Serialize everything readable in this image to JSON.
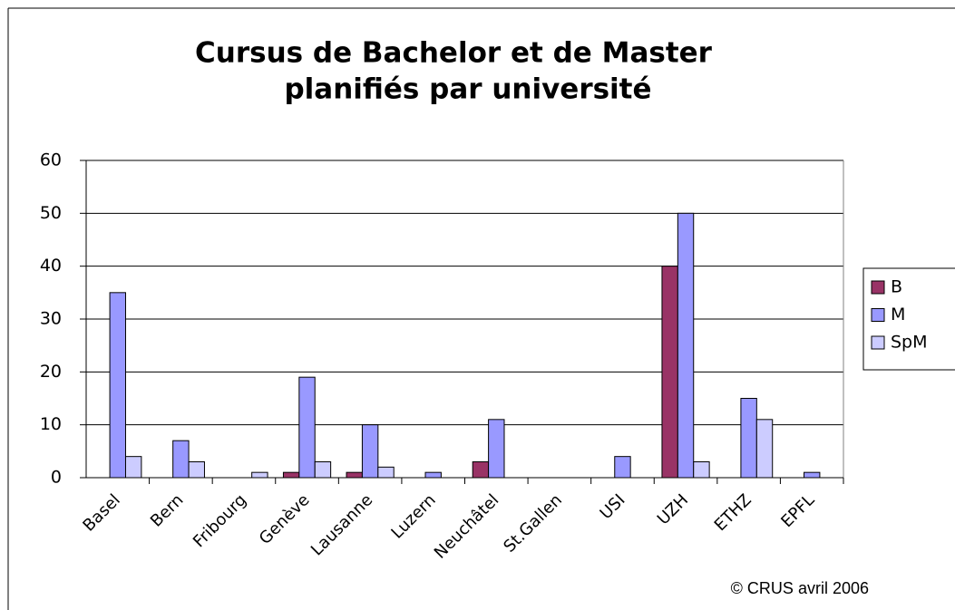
{
  "chart_data": {
    "type": "bar",
    "title": [
      "Cursus de Bachelor et de Master",
      "planifiés par université"
    ],
    "annotation": "© CRUS avril 2006",
    "categories": [
      "Basel",
      "Bern",
      "Fribourg",
      "Genève",
      "Lausanne",
      "Luzern",
      "Neuchâtel",
      "St.Gallen",
      "USI",
      "UZH",
      "ETHZ",
      "EPFL"
    ],
    "series": [
      {
        "name": "B",
        "color": "#993366",
        "values": [
          0,
          0,
          0,
          1,
          1,
          0,
          3,
          0,
          0,
          40,
          0,
          0
        ]
      },
      {
        "name": "M",
        "color": "#9999ff",
        "values": [
          35,
          7,
          0,
          19,
          10,
          1,
          11,
          0,
          4,
          50,
          15,
          1
        ]
      },
      {
        "name": "SpM",
        "color": "#ccccff",
        "values": [
          4,
          3,
          1,
          3,
          2,
          0,
          0,
          0,
          0,
          3,
          11,
          0
        ]
      }
    ],
    "ylim": [
      0,
      60
    ],
    "yticks": [
      0,
      10,
      20,
      30,
      40,
      50,
      60
    ],
    "grid": true,
    "legend": "right"
  }
}
